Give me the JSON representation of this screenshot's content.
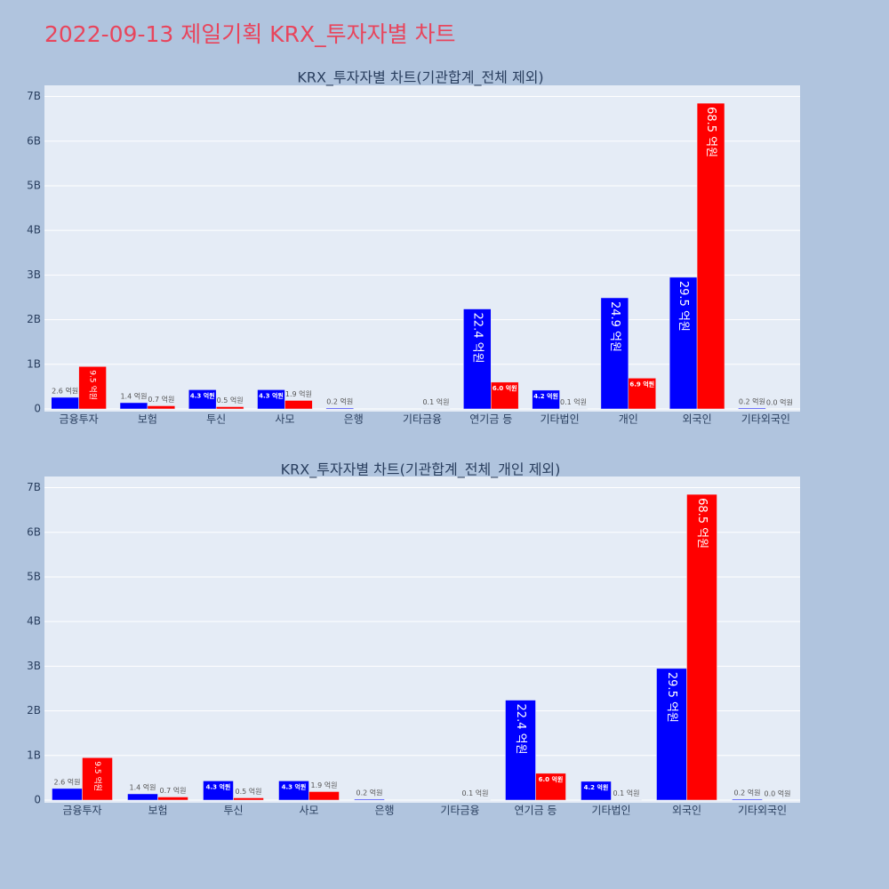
{
  "title": "2022-09-13 제일기획 KRX_투자자별 차트",
  "chart_data": [
    {
      "type": "bar",
      "title": "KRX_투자자별 차트(기관합계_전체 제외)",
      "categories": [
        "금융투자",
        "보험",
        "투신",
        "사모",
        "은행",
        "기타금융",
        "연기금 등",
        "기타법인",
        "개인",
        "외국인",
        "기타외국인"
      ],
      "series": [
        {
          "color": "#0000ff",
          "values": [
            260000000,
            140000000,
            430000000,
            430000000,
            20000000,
            null,
            2240000000,
            420000000,
            2490000000,
            2950000000,
            20000000
          ],
          "value_labels": [
            "2.6 억원",
            "1.4 억원",
            "4.3 억원",
            "4.3 억원",
            "0.2 억원",
            null,
            "22.4 억원",
            "4.2 억원",
            "24.9 억원",
            "29.5 억원",
            "0.2 억원"
          ]
        },
        {
          "color": "#ff0000",
          "values": [
            950000000,
            70000000,
            50000000,
            190000000,
            null,
            10000000,
            600000000,
            10000000,
            690000000,
            6850000000,
            0
          ],
          "value_labels": [
            "9.5 억원",
            "0.7 억원",
            "0.5 억원",
            "1.9 억원",
            null,
            "0.1 억원",
            "6.0 억원",
            "0.1 억원",
            "6.9 억원",
            "68.5 억원",
            "0.0 억원"
          ]
        }
      ],
      "ylim": [
        0,
        7250000000
      ],
      "yticks": [
        0,
        {
          "value": 1000000000,
          "label": "1B"
        },
        {
          "value": 2000000000,
          "label": "2B"
        },
        {
          "value": 3000000000,
          "label": "3B"
        },
        {
          "value": 4000000000,
          "label": "4B"
        },
        {
          "value": 5000000000,
          "label": "5B"
        },
        {
          "value": 6000000000,
          "label": "6B"
        },
        {
          "value": 7000000000,
          "label": "7B"
        }
      ],
      "grid": true
    },
    {
      "type": "bar",
      "title": "KRX_투자자별 차트(기관합계_전체_개인 제외)",
      "categories": [
        "금융투자",
        "보험",
        "투신",
        "사모",
        "은행",
        "기타금융",
        "연기금 등",
        "기타법인",
        "외국인",
        "기타외국인"
      ],
      "series": [
        {
          "color": "#0000ff",
          "values": [
            260000000,
            140000000,
            430000000,
            430000000,
            20000000,
            null,
            2240000000,
            420000000,
            2950000000,
            20000000
          ],
          "value_labels": [
            "2.6 억원",
            "1.4 억원",
            "4.3 억원",
            "4.3 억원",
            "0.2 억원",
            null,
            "22.4 억원",
            "4.2 억원",
            "29.5 억원",
            "0.2 억원"
          ]
        },
        {
          "color": "#ff0000",
          "values": [
            950000000,
            70000000,
            50000000,
            190000000,
            null,
            10000000,
            600000000,
            10000000,
            6850000000,
            0
          ],
          "value_labels": [
            "9.5 억원",
            "0.7 억원",
            "0.5 억원",
            "1.9 억원",
            null,
            "0.1 억원",
            "6.0 억원",
            "0.1 억원",
            "68.5 억원",
            "0.0 억원"
          ]
        }
      ],
      "ylim": [
        0,
        7250000000
      ],
      "yticks": [
        0,
        {
          "value": 1000000000,
          "label": "1B"
        },
        {
          "value": 2000000000,
          "label": "2B"
        },
        {
          "value": 3000000000,
          "label": "3B"
        },
        {
          "value": 4000000000,
          "label": "4B"
        },
        {
          "value": 5000000000,
          "label": "5B"
        },
        {
          "value": 6000000000,
          "label": "6B"
        },
        {
          "value": 7000000000,
          "label": "7B"
        }
      ],
      "grid": true
    }
  ]
}
